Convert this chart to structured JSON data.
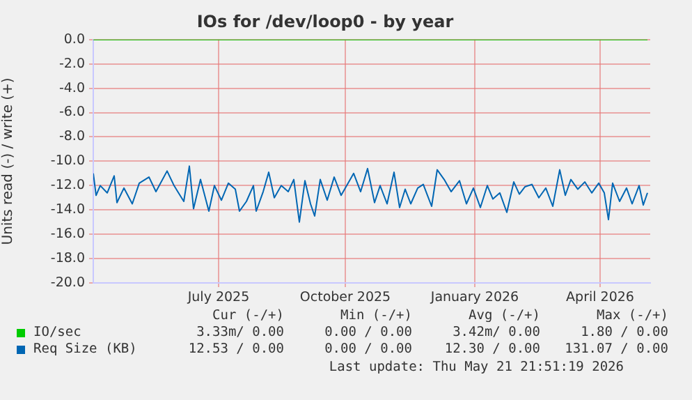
{
  "chart_data": {
    "type": "line",
    "title": "IOs for /dev/loop0 - by year",
    "ylabel": "Units read (-) / write (+)",
    "xlim": [
      "2025-04-17",
      "2026-05-22"
    ],
    "xticks": [
      {
        "value": "2025-07-16",
        "label": "July 2025"
      },
      {
        "value": "2025-10-15",
        "label": "October 2025"
      },
      {
        "value": "2026-01-16",
        "label": "January 2026"
      },
      {
        "value": "2026-04-16",
        "label": "April 2026"
      }
    ],
    "ylim": [
      -20,
      0
    ],
    "yticks": [
      {
        "value": 0,
        "label": "0.0"
      },
      {
        "value": -2,
        "label": "-2.0"
      },
      {
        "value": -4,
        "label": "-4.0"
      },
      {
        "value": -6,
        "label": "-6.0"
      },
      {
        "value": -8,
        "label": "-8.0"
      },
      {
        "value": -10,
        "label": "-10.0"
      },
      {
        "value": -12,
        "label": "-12.0"
      },
      {
        "value": -14,
        "label": "-14.0"
      },
      {
        "value": -16,
        "label": "-16.0"
      },
      {
        "value": -18,
        "label": "-18.0"
      },
      {
        "value": -20,
        "label": "-20.0"
      }
    ],
    "grid": true,
    "legend": "bottom",
    "marker": "none",
    "line_style": "solid",
    "series": [
      {
        "name": "IO/sec",
        "color": "#00cc00",
        "x": [
          "2025-04-17",
          "2026-05-20"
        ],
        "values": [
          0,
          0
        ]
      },
      {
        "name": "Req Size (KB)",
        "color": "#0066b3",
        "x": [
          "2025-04-17",
          "2025-04-19",
          "2025-04-22",
          "2025-04-27",
          "2025-05-02",
          "2025-05-04",
          "2025-05-09",
          "2025-05-15",
          "2025-05-20",
          "2025-05-27",
          "2025-06-01",
          "2025-06-09",
          "2025-06-14",
          "2025-06-21",
          "2025-06-25",
          "2025-06-28",
          "2025-07-03",
          "2025-07-09",
          "2025-07-13",
          "2025-07-18",
          "2025-07-23",
          "2025-07-28",
          "2025-07-31",
          "2025-08-05",
          "2025-08-10",
          "2025-08-12",
          "2025-08-17",
          "2025-08-21",
          "2025-08-25",
          "2025-08-30",
          "2025-09-04",
          "2025-09-08",
          "2025-09-12",
          "2025-09-16",
          "2025-09-20",
          "2025-09-23",
          "2025-09-27",
          "2025-10-02",
          "2025-10-07",
          "2025-10-12",
          "2025-10-21",
          "2025-10-26",
          "2025-10-31",
          "2025-11-05",
          "2025-11-09",
          "2025-11-14",
          "2025-11-19",
          "2025-11-23",
          "2025-11-27",
          "2025-12-01",
          "2025-12-06",
          "2025-12-10",
          "2025-12-13",
          "2025-12-16",
          "2025-12-20",
          "2025-12-25",
          "2025-12-30",
          "2026-01-05",
          "2026-01-10",
          "2026-01-15",
          "2026-01-20",
          "2026-01-25",
          "2026-01-29",
          "2026-02-03",
          "2026-02-08",
          "2026-02-13",
          "2026-02-17",
          "2026-02-21",
          "2026-02-26",
          "2026-03-03",
          "2026-03-08",
          "2026-03-13",
          "2026-03-18",
          "2026-03-22",
          "2026-03-26",
          "2026-03-31",
          "2026-04-05",
          "2026-04-10",
          "2026-04-15",
          "2026-04-19",
          "2026-04-22",
          "2026-04-25",
          "2026-04-30",
          "2026-05-05",
          "2026-05-09",
          "2026-05-14",
          "2026-05-17",
          "2026-05-20"
        ],
        "values": [
          -11,
          -12.8,
          -12,
          -12.6,
          -11.2,
          -13.4,
          -12.2,
          -13.5,
          -11.8,
          -11.3,
          -12.5,
          -10.8,
          -12,
          -13.3,
          -10.4,
          -13.9,
          -11.5,
          -14.1,
          -12,
          -13.2,
          -11.8,
          -12.3,
          -14.1,
          -13.3,
          -12,
          -14.1,
          -12.5,
          -10.9,
          -13,
          -12,
          -12.5,
          -11.5,
          -15,
          -11.6,
          -13.5,
          -14.5,
          -11.5,
          -13.2,
          -11.3,
          -12.8,
          -11,
          -12.5,
          -10.6,
          -13.4,
          -12,
          -13.5,
          -10.9,
          -13.8,
          -12.3,
          -13.5,
          -12.2,
          -11.9,
          -12.8,
          -13.7,
          -10.7,
          -11.5,
          -12.5,
          -11.6,
          -13.5,
          -12.2,
          -13.8,
          -12,
          -13.1,
          -12.6,
          -14.2,
          -11.7,
          -12.7,
          -12.1,
          -11.9,
          -13,
          -12.2,
          -13.7,
          -10.7,
          -12.8,
          -11.5,
          -12.3,
          -11.7,
          -12.6,
          -11.8,
          -12.6,
          -14.8,
          -11.8,
          -13.3,
          -12.2,
          -13.5,
          -12,
          -13.6,
          -12.6
        ]
      }
    ],
    "annotations": [
      "Cur (-/+)",
      "Min (-/+)",
      "Avg (-/+)",
      "Max (-/+)",
      "3.33m/ 0.00",
      "0.00 / 0.00",
      "3.42m/ 0.00",
      "1.80 / 0.00",
      "12.53 / 0.00",
      "0.00 / 0.00",
      "12.30 / 0.00",
      "131.07 / 0.00",
      "Last update: Thu May 21 21:51:19 2026"
    ]
  }
}
